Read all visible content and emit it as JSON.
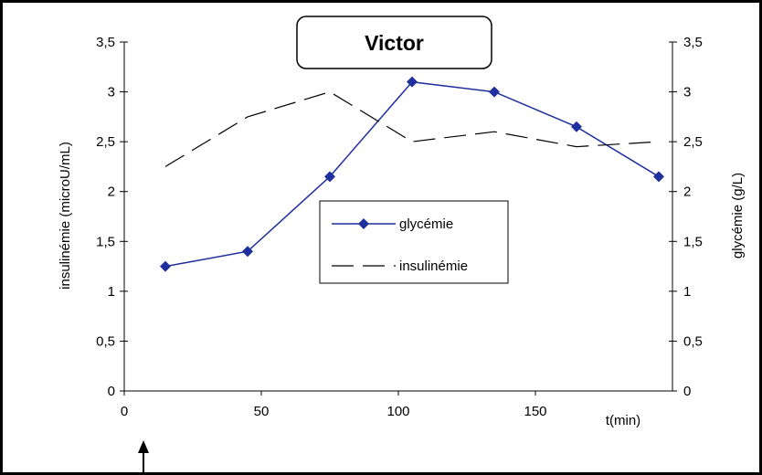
{
  "chart_data": {
    "type": "line",
    "title": "Victor",
    "xlabel": "t(min)",
    "ylabel_left": "insulinémie (microU/mL)",
    "ylabel_right": "glycémie (g/L)",
    "xlim": [
      0,
      200
    ],
    "ylim": [
      0,
      3.5
    ],
    "x_ticks": [
      "0",
      "50",
      "100",
      "150"
    ],
    "y_ticks": [
      "0",
      "0,5",
      "1",
      "1,5",
      "2",
      "2,5",
      "3",
      "3,5"
    ],
    "grid": false,
    "legend_position": "center",
    "series": [
      {
        "name": "glycémie",
        "axis": "right",
        "color": "#1f2f9e",
        "marker": "diamond",
        "x": [
          15,
          45,
          75,
          105,
          135,
          165,
          195
        ],
        "values": [
          1.25,
          1.4,
          2.15,
          3.1,
          3.0,
          2.65,
          2.15
        ]
      },
      {
        "name": "insulinémie",
        "axis": "left",
        "color": "#000000",
        "dash": "long-dash",
        "x": [
          15,
          45,
          75,
          105,
          135,
          165,
          195
        ],
        "values": [
          2.25,
          2.75,
          3.0,
          2.5,
          2.6,
          2.45,
          2.5
        ]
      }
    ]
  }
}
